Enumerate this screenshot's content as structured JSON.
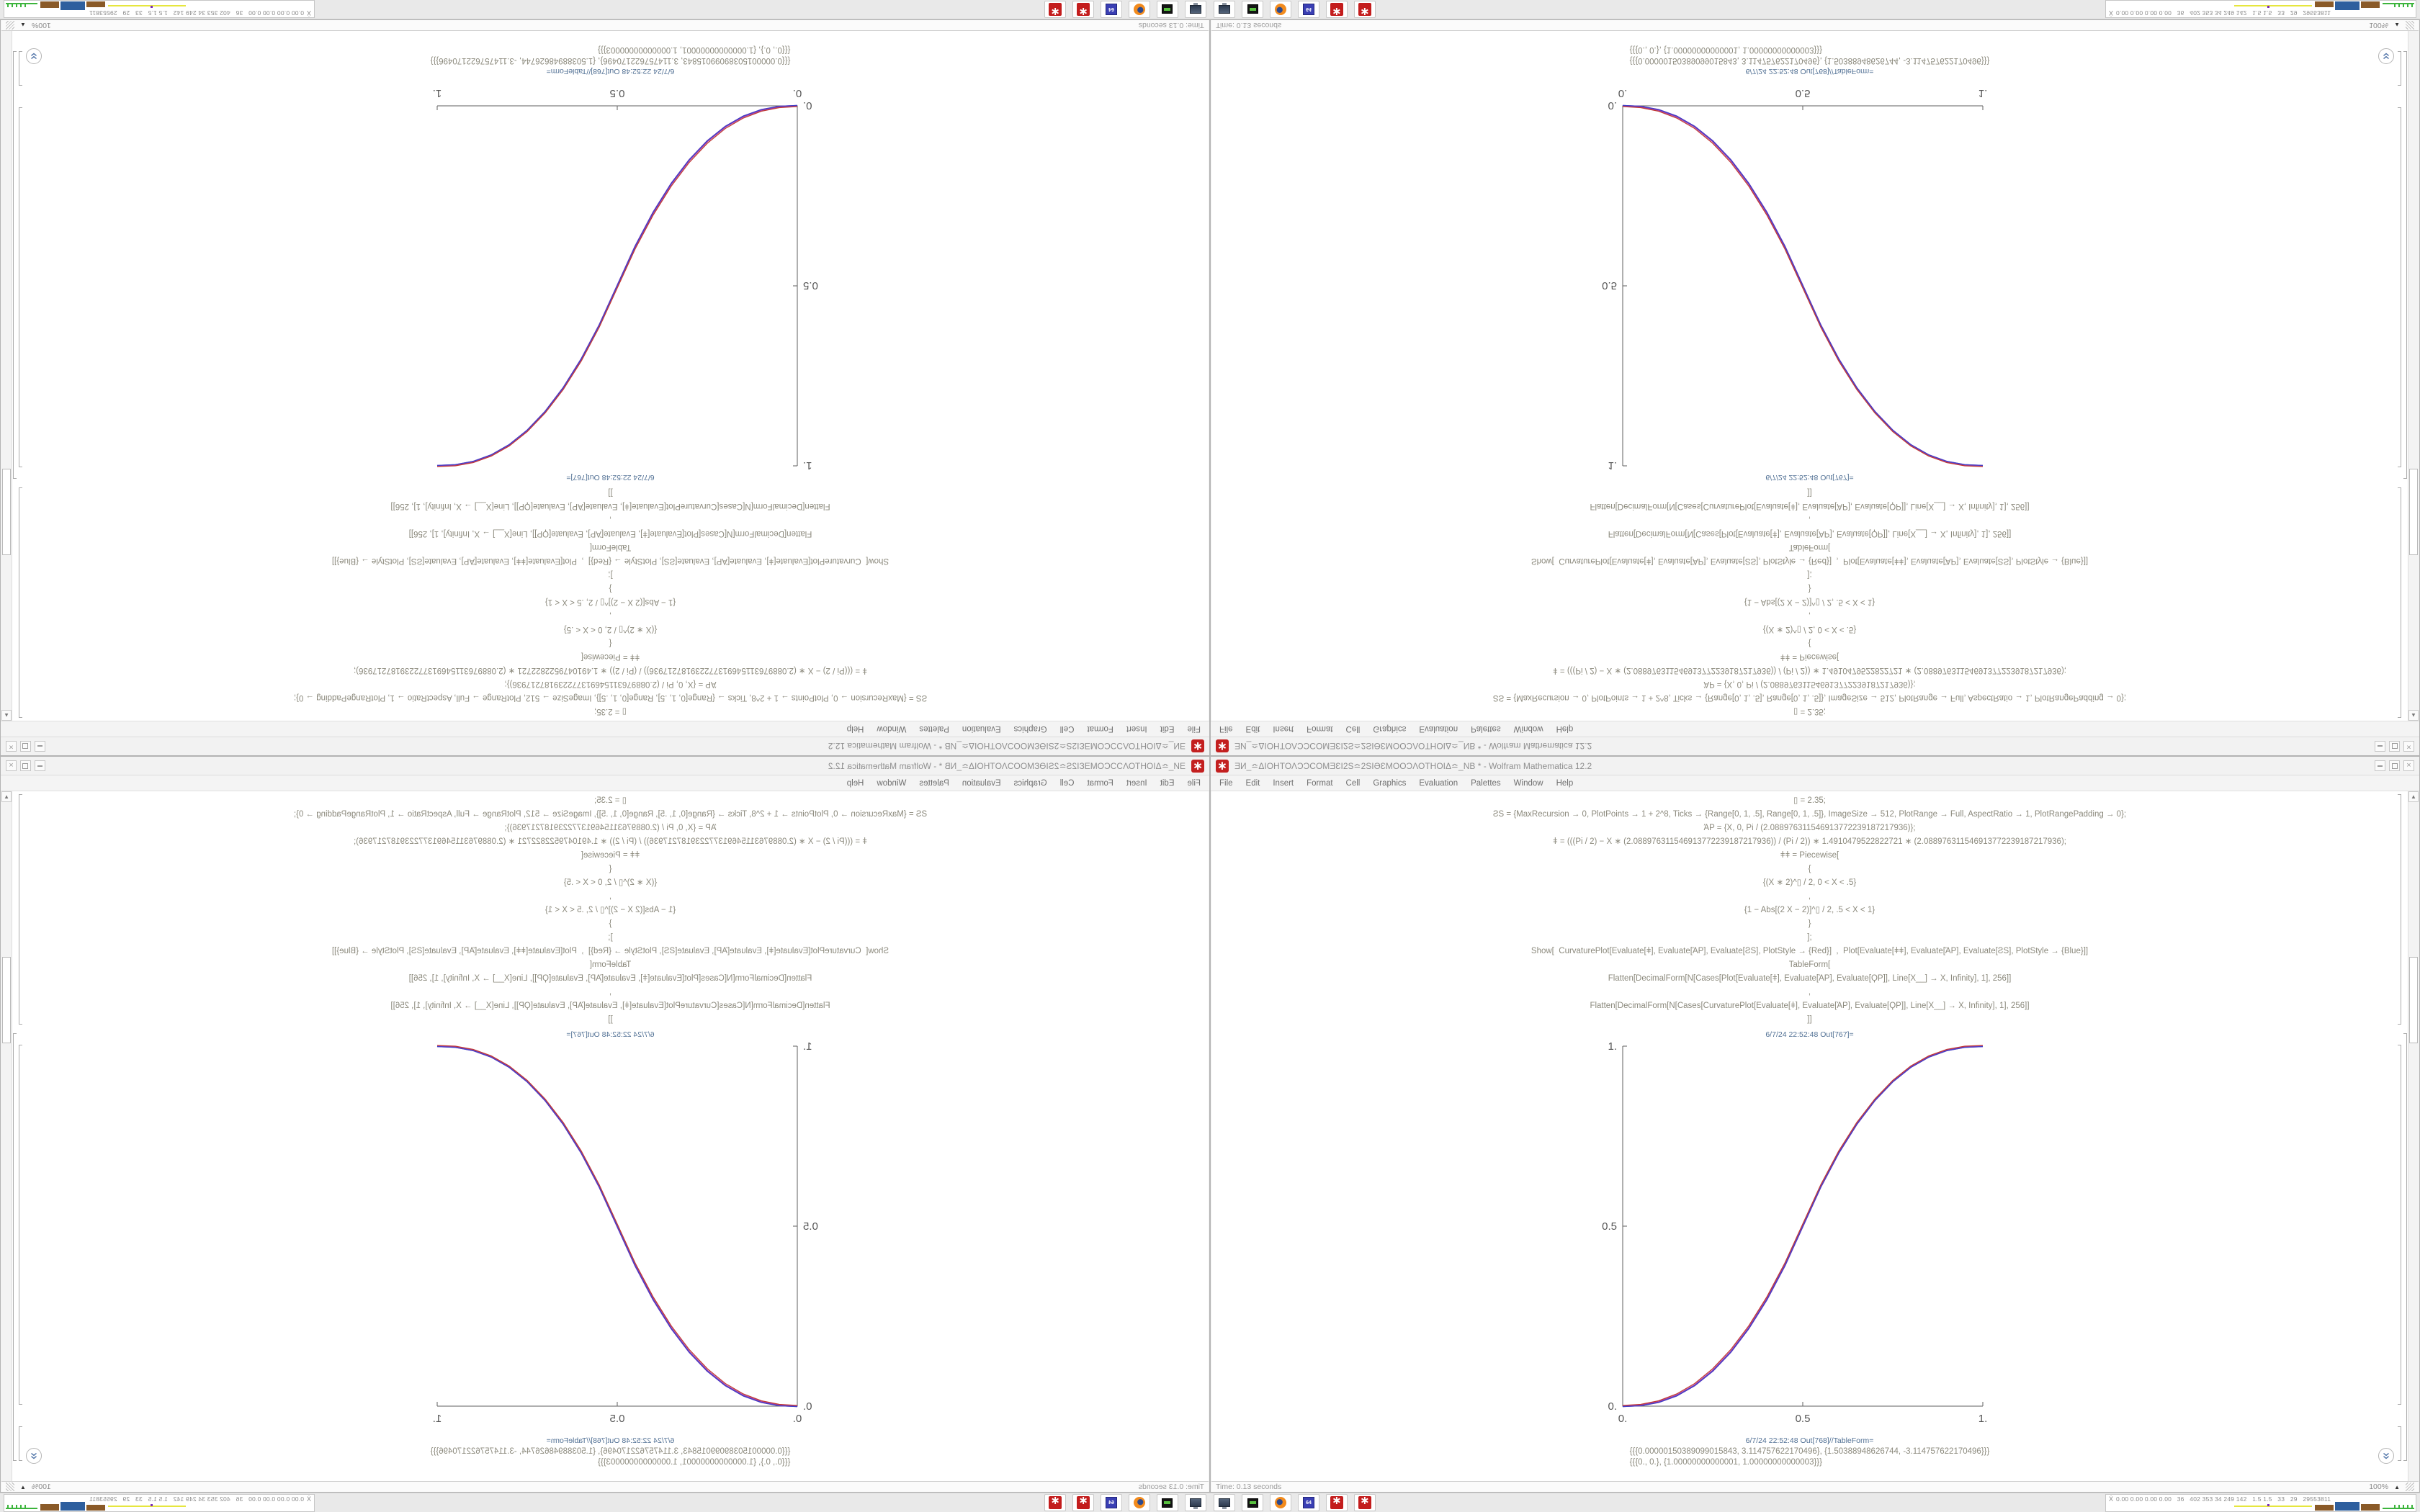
{
  "desktop": {
    "window": {
      "title": "ƎИ_≏ΔΙΟΗΤΟΛϽϽCOMƎƐΙ2S≏2SΙƏƐMOOϽΛΟΤΗΟΙΔ≏_NB * - Wolfram Mathematica 12.2",
      "app_icon": "mathematica-spikey-icon",
      "controls": {
        "minimize": "minimize",
        "maximize": "maximize",
        "close": "×"
      },
      "menu": [
        "File",
        "Edit",
        "Insert",
        "Format",
        "Cell",
        "Graphics",
        "Evaluation",
        "Palettes",
        "Window",
        "Help"
      ],
      "status_time": "Time: 0.13 seconds",
      "zoom_level": "100%"
    },
    "notebook": {
      "code_lines": [
        "▯ = 2.35;",
        "ƧS = {MaxRecursion → 0, PlotPoints → 1 + 2^8, Ticks → {Range[0, 1, .5], Range[0, 1, .5]}, ImageSize → 512, PlotRange → Full, AspectRatio → 1, PlotRangePadding → 0};",
        "ΆΡ = {X, 0, Pi / (2.088976311546913772239187217936)};",
        "ǂ = (((Pi / 2) − X ∗ (2.088976311546913772239187217936)) / (Pi / 2)) ∗ 1.4910479522822721 ∗ (2.088976311546913772239187217936);",
        "ǂǂ = Piecewise[",
        "{",
        "{(X ∗ 2)^▯ / 2, 0 < X < .5}",
        ",",
        "{1 − Abs[(2 X − 2)]^▯ / 2, .5 < X < 1}",
        "}",
        "];",
        "Show[  CurvaturePlot[Evaluate[ǂ], Evaluate[ΆΡ], Evaluate[ƧS], PlotStyle → {Red}]  ,  Plot[Evaluate[ǂǂ], Evaluate[ΆΡ], Evaluate[ƧS], PlotStyle → {Blue}]]",
        "TableForm[",
        "Flatten[DecimalForm[N[Cases[Plot[Evaluate[ǂ], Evaluate[ΆΡ], Evaluate[ϘΡ]], Line[X__] → X, Infinity], 1], 256]]",
        ",",
        "Flatten[DecimalForm[N[Cases[CurvaturePlot[Evaluate[ǂ], Evaluate[ΆΡ], Evaluate[ϘΡ]], Line[X__] → X, Infinity], 1], 256]]",
        "]]"
      ],
      "out1_label": "6/7/24 22:52:48 Out[767]=",
      "out2_label": "6/7/24 22:52:48 Out[768]//TableForm=",
      "table_rows": [
        "{{{0.00000150389099015843, 3.114757622170496}, {1.50388948626744, -3.114757622170496}}}",
        "{{{0., 0.}, {1.00000000000001, 1.00000000000003}}}"
      ]
    },
    "taskbar": {
      "icons": [
        {
          "name": "display-settings-icon",
          "kind": "monitor"
        },
        {
          "name": "disk-utility-icon",
          "kind": "disk"
        },
        {
          "name": "firefox-icon",
          "kind": "firefox"
        },
        {
          "name": "floppy-64-icon",
          "kind": "floppy",
          "label": "64"
        },
        {
          "name": "mathematica-icon",
          "kind": "spikey"
        },
        {
          "name": "mathematica-icon-2",
          "kind": "spikey"
        }
      ],
      "tray_icon": "system-monitor-icon",
      "tray_text": "0.00 0.00 0.00 0.00   36   402 353 34 249 142   1.5 1.5   33   29   29553811"
    }
  },
  "chart_data": {
    "type": "line",
    "title": "",
    "xlabel": "",
    "ylabel": "",
    "xlim": [
      0,
      1
    ],
    "ylim": [
      0,
      1
    ],
    "grid": false,
    "legend_position": "none",
    "axes_style": "left-bottom",
    "tick_values": [
      0,
      0.5,
      1
    ],
    "x_tick_labels": [
      "0.",
      "0.5",
      "1."
    ],
    "y_tick_labels": [
      "0.",
      "0.5",
      "1."
    ],
    "x": [
      0,
      0.05,
      0.1,
      0.15,
      0.2,
      0.25,
      0.3,
      0.35,
      0.4,
      0.45,
      0.5,
      0.55,
      0.6,
      0.65,
      0.7,
      0.75,
      0.8,
      0.85,
      0.9,
      0.95,
      1
    ],
    "series": [
      {
        "name": "CurvaturePlot (Red)",
        "color": "#c23a35",
        "values": [
          0,
          0.003,
          0.013,
          0.032,
          0.061,
          0.102,
          0.155,
          0.221,
          0.301,
          0.395,
          0.504,
          0.613,
          0.707,
          0.786,
          0.851,
          0.903,
          0.943,
          0.971,
          0.989,
          0.998,
          1
        ]
      },
      {
        "name": "Plot (Blue)",
        "color": "#4040c8",
        "values": [
          0,
          0.0022,
          0.0114,
          0.0295,
          0.058,
          0.0981,
          0.1505,
          0.2163,
          0.296,
          0.3903,
          0.5,
          0.6097,
          0.704,
          0.7837,
          0.8495,
          0.9019,
          0.942,
          0.9705,
          0.9886,
          0.9978,
          1
        ]
      }
    ]
  }
}
